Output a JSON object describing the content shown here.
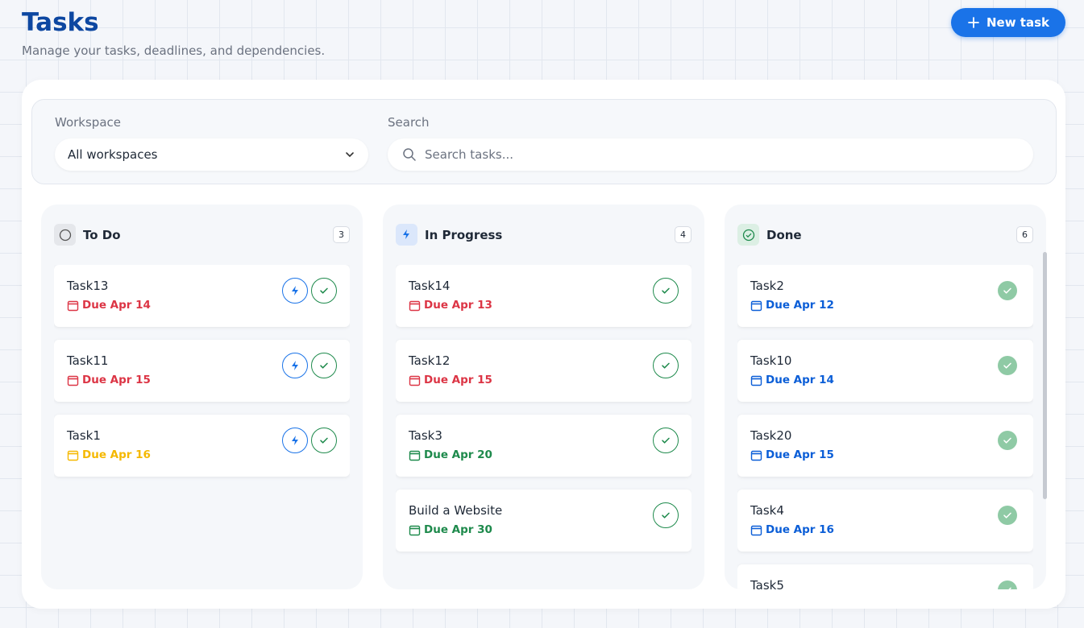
{
  "header": {
    "title": "Tasks",
    "subtitle": "Manage your tasks, deadlines, and dependencies.",
    "new_task": "New task"
  },
  "filters": {
    "workspace_label": "Workspace",
    "workspace_value": "All workspaces",
    "search_label": "Search",
    "search_placeholder": "Search tasks..."
  },
  "columns": [
    {
      "title": "To Do",
      "count": 3,
      "tasks": [
        {
          "name": "Task13",
          "due": "Due Apr 14",
          "due_color": "#dc3545"
        },
        {
          "name": "Task11",
          "due": "Due Apr 15",
          "due_color": "#dc3545"
        },
        {
          "name": "Task1",
          "due": "Due Apr 16",
          "due_color": "#f5b800"
        }
      ]
    },
    {
      "title": "In Progress",
      "count": 4,
      "tasks": [
        {
          "name": "Task14",
          "due": "Due Apr 13",
          "due_color": "#dc3545"
        },
        {
          "name": "Task12",
          "due": "Due Apr 15",
          "due_color": "#dc3545"
        },
        {
          "name": "Task3",
          "due": "Due Apr 20",
          "due_color": "#1e8a4c"
        },
        {
          "name": "Build a Website",
          "due": "Due Apr 30",
          "due_color": "#1e8a4c"
        }
      ]
    },
    {
      "title": "Done",
      "count": 6,
      "tasks": [
        {
          "name": "Task2",
          "due": "Due Apr 12",
          "due_color": "#0b5ed7"
        },
        {
          "name": "Task10",
          "due": "Due Apr 14",
          "due_color": "#0b5ed7"
        },
        {
          "name": "Task20",
          "due": "Due Apr 15",
          "due_color": "#0b5ed7"
        },
        {
          "name": "Task4",
          "due": "Due Apr 16",
          "due_color": "#0b5ed7"
        },
        {
          "name": "Task5"
        }
      ]
    }
  ]
}
